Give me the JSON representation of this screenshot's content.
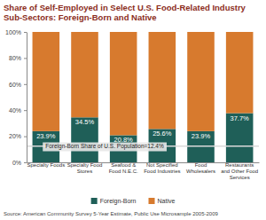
{
  "chart_data": {
    "type": "bar",
    "title": "Share of Self-Employed in Select U.S. Food-Related Industry Sub-Sectors: Foreign-Born and Native",
    "stacked": true,
    "categories": [
      "Specialty Foods",
      "Specialty Food Stores",
      "Seafood & Food N.E.C.",
      "Not Specified Food Industries",
      "Food Wholesalers",
      "Restaurants and Other Food Services"
    ],
    "series": [
      {
        "name": "Foreign-Born",
        "color": "#1f5f58",
        "values": [
          23.9,
          34.5,
          20.8,
          25.6,
          23.9,
          37.7
        ],
        "value_labels": [
          "23.9%",
          "34.5%",
          "20.8%",
          "25.6%",
          "23.9%",
          "37.7%"
        ],
        "data_labels": true
      },
      {
        "name": "Native",
        "color": "#d77a2e",
        "values": [
          76.1,
          65.5,
          79.2,
          74.4,
          76.1,
          62.3
        ]
      }
    ],
    "ylim": [
      0,
      100
    ],
    "yticks": [
      {
        "value": 0,
        "label": "0%"
      },
      {
        "value": 20,
        "label": "20%"
      },
      {
        "value": 40,
        "label": "40%"
      },
      {
        "value": 60,
        "label": "60%"
      },
      {
        "value": 80,
        "label": "80%"
      },
      {
        "value": 100,
        "label": "100%"
      }
    ],
    "legend": "bottom",
    "annotations": [
      {
        "text": "Foreign-Born Share of U.S. Population=12.4%",
        "value": 12.4
      }
    ],
    "source": "Source: American Community Survey 5-Year Estimate, Public Use Microsample 2005-2009"
  }
}
